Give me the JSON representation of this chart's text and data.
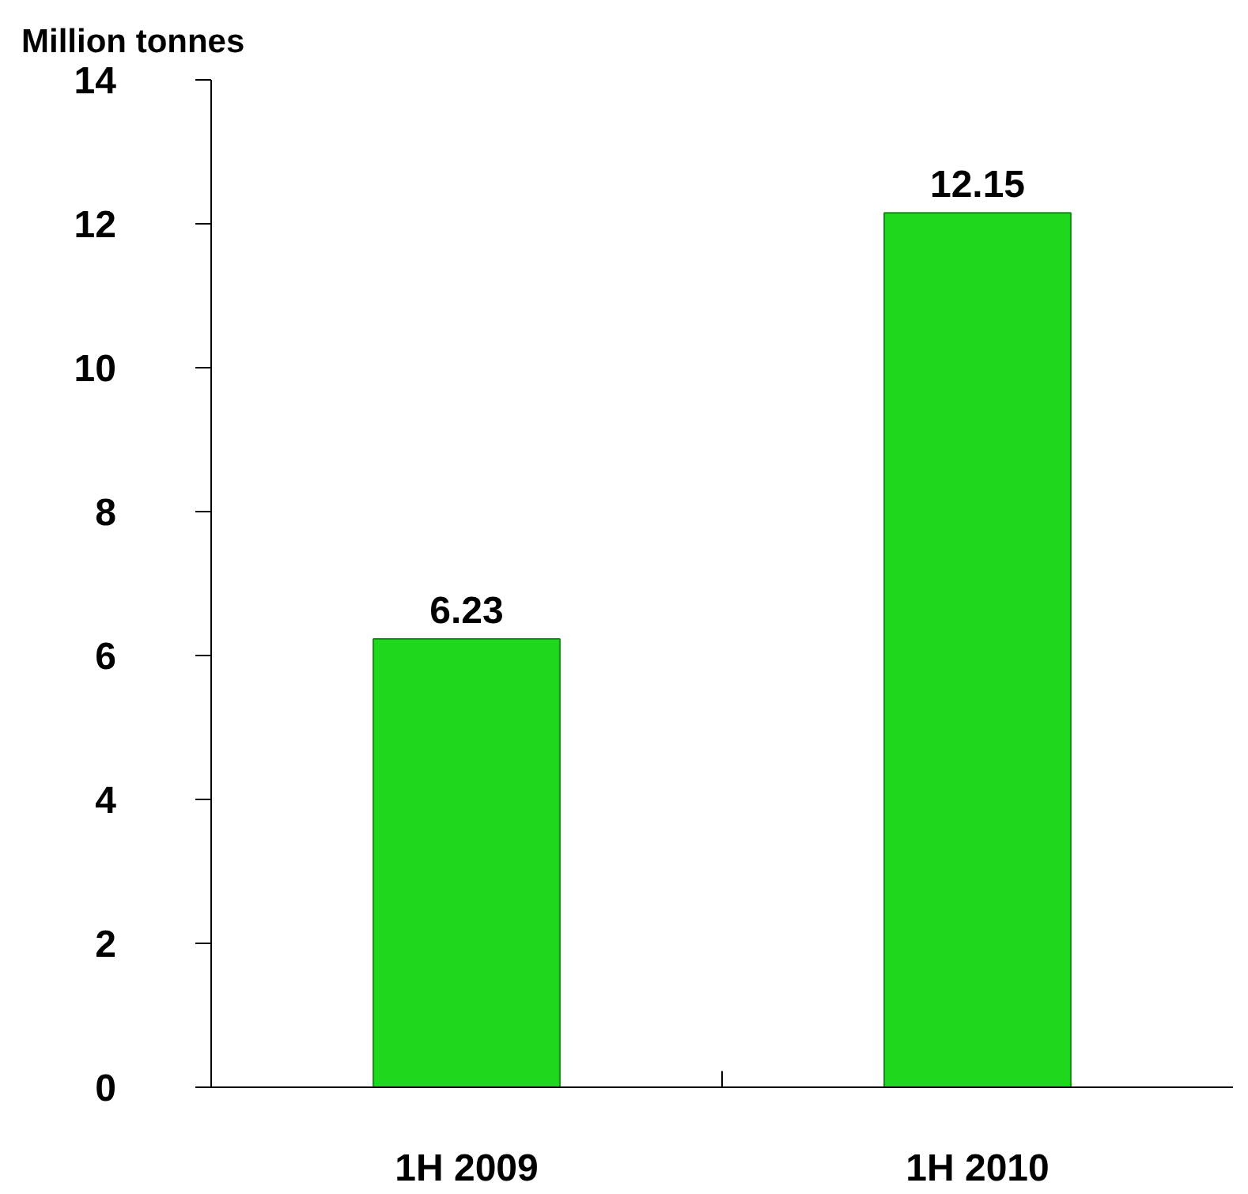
{
  "chart_data": {
    "type": "bar",
    "ylabel": "Million tonnes",
    "categories": [
      "1H 2009",
      "1H 2010"
    ],
    "values": [
      6.23,
      12.15
    ],
    "color": "#1ed81e",
    "ylim": [
      0,
      14
    ],
    "yticks": [
      0,
      2,
      4,
      6,
      8,
      10,
      12,
      14
    ],
    "data_labels": true,
    "grid": false
  }
}
